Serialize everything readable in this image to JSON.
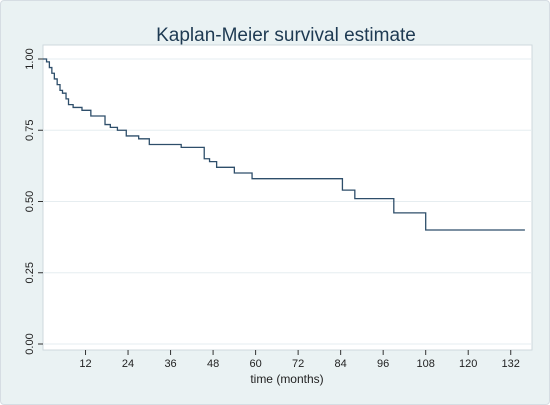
{
  "chart_data": {
    "type": "line",
    "step": true,
    "title": "Kaplan-Meier survival estimate",
    "xlabel": "time (months)",
    "ylabel": "",
    "xlim": [
      0,
      138
    ],
    "ylim": [
      0,
      1
    ],
    "xticks": [
      12,
      24,
      36,
      48,
      60,
      72,
      84,
      96,
      108,
      120,
      132
    ],
    "yticks": [
      0,
      0.25,
      0.5,
      0.75,
      1
    ],
    "ytick_labels": [
      "0.00",
      "0.25",
      "0.50",
      "0.75",
      "1.00"
    ],
    "grid": true,
    "legend": false,
    "colors": {
      "line": "#2e4e6a",
      "grid": "#e6edf0",
      "plot_bg": "#ffffff",
      "outer_bg": "#eaf2f3",
      "title": "#1e3a52"
    },
    "series": [
      {
        "x": [
          0,
          1.0,
          1.8,
          2.5,
          3.2,
          4.0,
          4.8,
          5.5,
          6.5,
          7.2,
          8.5,
          11.0,
          13.5,
          17.5,
          19.0,
          21.0,
          23.5,
          27.0,
          30.0,
          39.0,
          45.5,
          47.0,
          49.0,
          54.0,
          59.0,
          84.5,
          88.0,
          99.0,
          108.0,
          136.0
        ],
        "y": [
          1.0,
          0.99,
          0.97,
          0.95,
          0.93,
          0.91,
          0.89,
          0.88,
          0.86,
          0.84,
          0.83,
          0.82,
          0.8,
          0.77,
          0.76,
          0.75,
          0.73,
          0.72,
          0.7,
          0.69,
          0.65,
          0.64,
          0.62,
          0.6,
          0.58,
          0.54,
          0.51,
          0.46,
          0.4,
          0.4
        ]
      }
    ]
  }
}
